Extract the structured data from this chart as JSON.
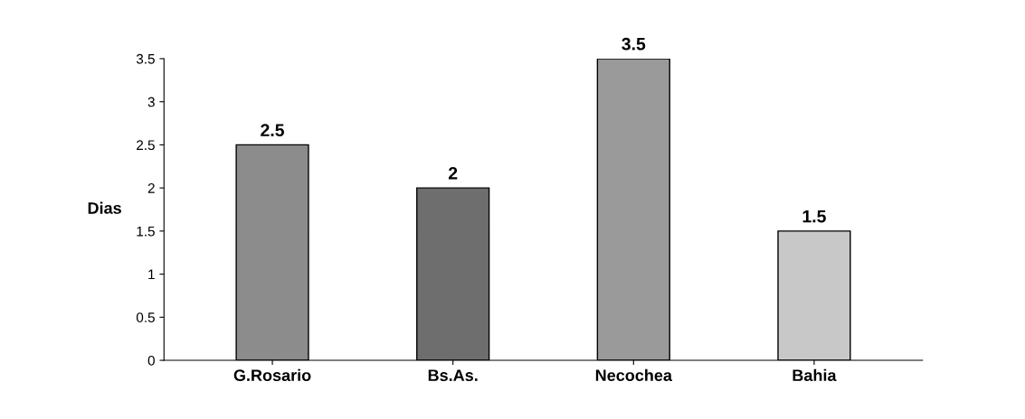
{
  "chart_data": {
    "type": "bar",
    "ylabel": "Dias",
    "categories": [
      "G.Rosario",
      "Bs.As.",
      "Necochea",
      "Bahia"
    ],
    "values": [
      2.5,
      2,
      3.5,
      1.5
    ],
    "colors": [
      "#8c8c8c",
      "#6e6e6e",
      "#9a9a9a",
      "#c8c8c8"
    ],
    "ylim": [
      0,
      3.5
    ],
    "yticks": [
      0,
      0.5,
      1,
      1.5,
      2,
      2.5,
      3,
      3.5
    ],
    "data_labels": true,
    "grid": false
  }
}
